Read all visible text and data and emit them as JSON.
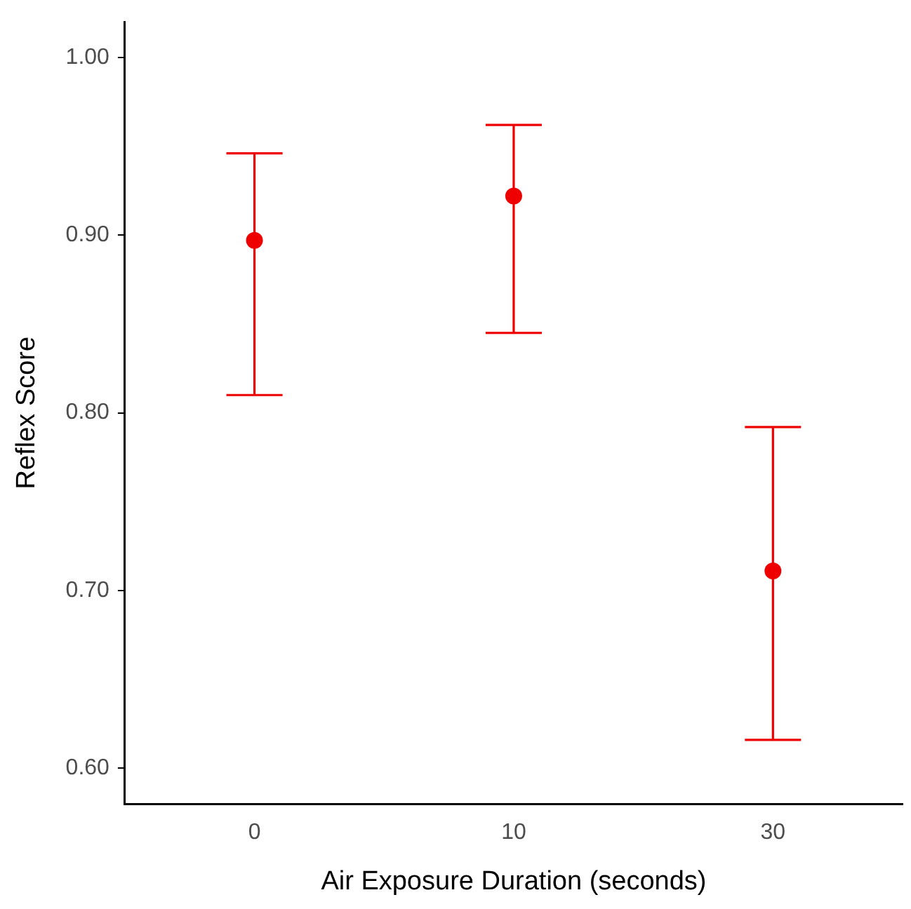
{
  "chart_data": {
    "type": "scatter",
    "xlabel": "Air Exposure Duration (seconds)",
    "ylabel": "Reflex Score",
    "categories": [
      "0",
      "10",
      "30"
    ],
    "values": [
      0.897,
      0.922,
      0.711
    ],
    "errors": [
      [
        0.81,
        0.946
      ],
      [
        0.845,
        0.962
      ],
      [
        0.616,
        0.792
      ]
    ],
    "color": "#ee0000",
    "ylim": [
      0.58,
      1.02
    ],
    "yticks": [
      {
        "value": 0.6,
        "label": "0.60"
      },
      {
        "value": 0.7,
        "label": "0.70"
      },
      {
        "value": 0.8,
        "label": "0.80"
      },
      {
        "value": 0.9,
        "label": "0.90"
      },
      {
        "value": 1.0,
        "label": "1.00"
      }
    ],
    "grid": false,
    "legend": false,
    "marker": "circle"
  }
}
